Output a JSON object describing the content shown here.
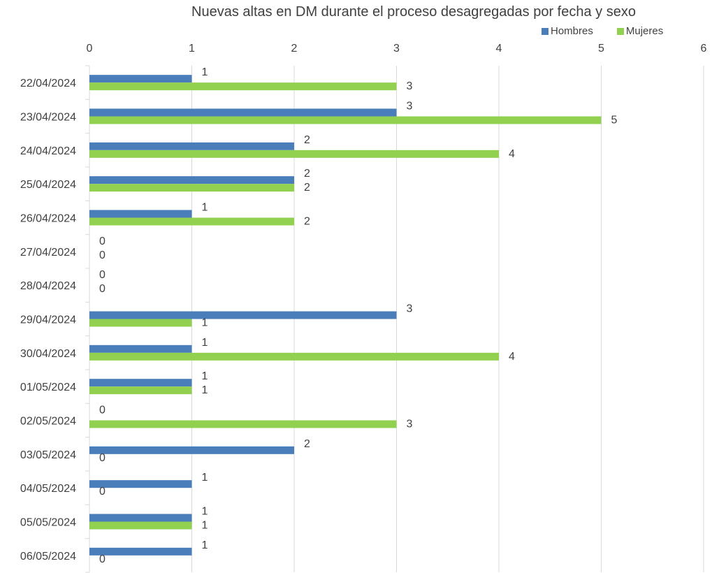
{
  "chart_data": {
    "type": "bar",
    "orientation": "horizontal",
    "title": "Nuevas altas en DM durante el proceso desagregadas por fecha y sexo",
    "categories": [
      "22/04/2024",
      "23/04/2024",
      "24/04/2024",
      "25/04/2024",
      "26/04/2024",
      "27/04/2024",
      "28/04/2024",
      "29/04/2024",
      "30/04/2024",
      "01/05/2024",
      "02/05/2024",
      "03/05/2024",
      "04/05/2024",
      "05/05/2024",
      "06/05/2024"
    ],
    "series": [
      {
        "name": "Hombres",
        "color": "#4a7ebb",
        "values": [
          1,
          3,
          2,
          2,
          1,
          0,
          0,
          3,
          1,
          1,
          0,
          2,
          1,
          1,
          1
        ]
      },
      {
        "name": "Mujeres",
        "color": "#92d050",
        "values": [
          3,
          5,
          4,
          2,
          2,
          0,
          0,
          1,
          4,
          1,
          3,
          0,
          0,
          1,
          0
        ]
      }
    ],
    "xlim": [
      0,
      6
    ],
    "xticks": [
      0,
      1,
      2,
      3,
      4,
      5,
      6
    ],
    "grid": true,
    "legend_position": "top-right",
    "axis_position": "top",
    "data_labels": true
  }
}
